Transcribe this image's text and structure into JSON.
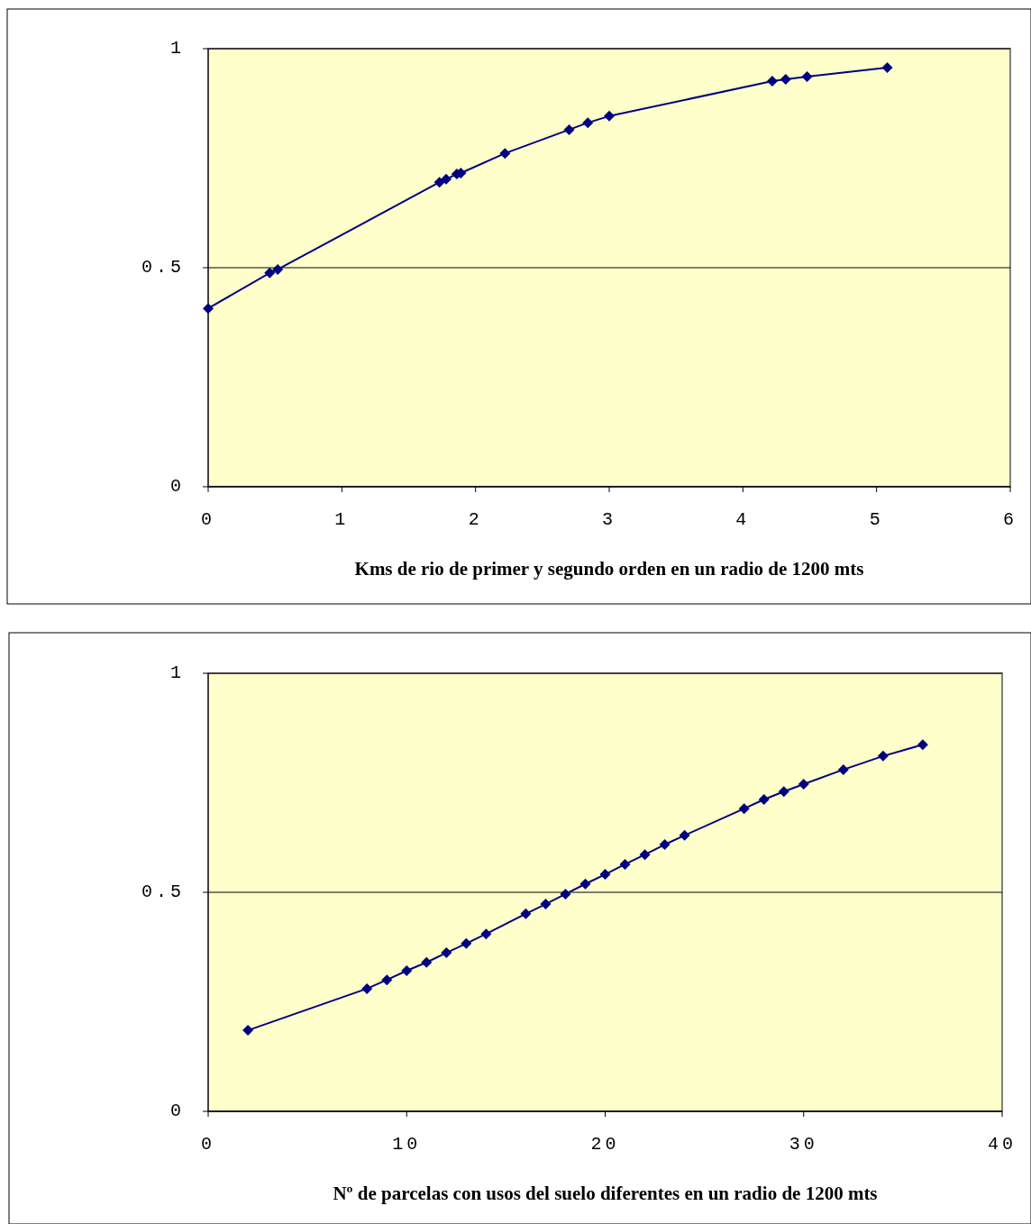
{
  "chart_data": [
    {
      "type": "line",
      "xlabel": "Kms de rio de primer y segundo orden en un radio de 1200 mts",
      "x": [
        0,
        0.46,
        0.52,
        1.73,
        1.78,
        1.86,
        1.89,
        2.22,
        2.7,
        2.84,
        3.0,
        4.22,
        4.32,
        4.48,
        5.08
      ],
      "series": [
        {
          "color": "#000080",
          "values": [
            0.407,
            0.488,
            0.496,
            0.695,
            0.702,
            0.714,
            0.716,
            0.761,
            0.815,
            0.831,
            0.846,
            0.926,
            0.93,
            0.936,
            0.957
          ]
        }
      ],
      "xlim": [
        0,
        6
      ],
      "xticks": [
        0,
        1,
        2,
        3,
        4,
        5,
        6
      ],
      "ylim": [
        0,
        1
      ],
      "yticks": [
        0,
        0.5,
        1
      ],
      "grid": "y",
      "marker": "diamond",
      "line_style": "solid"
    },
    {
      "type": "line",
      "xlabel": "Nº de parcelas con usos del suelo diferentes en un radio de 1200 mts",
      "x": [
        2,
        8,
        9,
        10,
        11,
        12,
        13,
        14,
        16,
        17,
        18,
        19,
        20,
        21,
        22,
        23,
        24,
        27,
        28,
        29,
        30,
        32,
        34,
        36
      ],
      "series": [
        {
          "color": "#000080",
          "values": [
            0.185,
            0.28,
            0.3,
            0.321,
            0.34,
            0.362,
            0.383,
            0.405,
            0.451,
            0.473,
            0.496,
            0.519,
            0.541,
            0.564,
            0.586,
            0.609,
            0.63,
            0.691,
            0.712,
            0.73,
            0.747,
            0.78,
            0.811,
            0.837
          ]
        }
      ],
      "xlim": [
        0,
        40
      ],
      "xticks": [
        0,
        10,
        20,
        30,
        40
      ],
      "ylim": [
        0,
        1
      ],
      "yticks": [
        0,
        0.5,
        1
      ],
      "grid": "y",
      "marker": "diamond",
      "line_style": "solid"
    }
  ]
}
